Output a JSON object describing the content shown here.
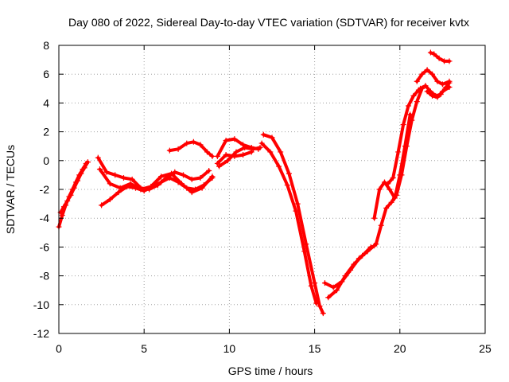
{
  "chart_data": {
    "type": "scatter",
    "title": "Day 080 of 2022, Sidereal Day-to-day VTEC variation (SDTVAR) for receiver kvtx",
    "xlabel": "GPS time / hours",
    "ylabel": "SDTVAR / TECUs",
    "xlim": [
      0,
      25
    ],
    "ylim": [
      -12,
      8
    ],
    "xticks": [
      0,
      5,
      10,
      15,
      20,
      25
    ],
    "yticks": [
      -12,
      -10,
      -8,
      -6,
      -4,
      -2,
      0,
      2,
      4,
      6,
      8
    ],
    "grid": true,
    "legend": "none",
    "marker": "+",
    "color": "#ff0000",
    "series": [
      {
        "x": [
          0.0,
          0.2,
          0.4,
          0.6,
          0.8,
          1.0,
          1.2,
          1.4,
          1.6
        ],
        "y": [
          -4.6,
          -3.8,
          -3.1,
          -2.5,
          -2.0,
          -1.5,
          -1.0,
          -0.6,
          -0.2
        ]
      },
      {
        "x": [
          0.1,
          0.3,
          0.5,
          0.7,
          0.9,
          1.1,
          1.3,
          1.5,
          1.7
        ],
        "y": [
          -3.6,
          -3.2,
          -2.8,
          -2.4,
          -1.9,
          -1.4,
          -0.9,
          -0.5,
          -0.1
        ]
      },
      {
        "x": [
          2.3,
          2.8,
          3.3,
          3.8,
          4.3,
          4.8,
          5.3,
          5.8,
          6.3,
          6.8,
          7.3,
          7.8,
          8.3,
          8.8
        ],
        "y": [
          0.2,
          -0.8,
          -1.0,
          -1.2,
          -1.3,
          -1.9,
          -2.0,
          -1.7,
          -1.2,
          -0.8,
          -1.0,
          -1.3,
          -1.2,
          -0.7
        ]
      },
      {
        "x": [
          2.5,
          3.0,
          3.5,
          4.0,
          4.5,
          5.0,
          5.5,
          6.0,
          6.5,
          7.0,
          7.5,
          8.0,
          8.5,
          9.0
        ],
        "y": [
          -3.1,
          -2.7,
          -2.2,
          -1.8,
          -1.9,
          -2.1,
          -1.8,
          -1.5,
          -1.2,
          -1.5,
          -1.9,
          -2.0,
          -1.7,
          -1.2
        ]
      },
      {
        "x": [
          2.4,
          3.0,
          3.6,
          4.2,
          4.8,
          5.4,
          6.0,
          6.6,
          7.2,
          7.8,
          8.4,
          9.0
        ],
        "y": [
          -0.6,
          -1.6,
          -1.9,
          -1.6,
          -2.0,
          -1.8,
          -1.1,
          -0.9,
          -1.6,
          -2.2,
          -1.9,
          -1.1
        ]
      },
      {
        "x": [
          6.5,
          7.0,
          7.5,
          7.9,
          8.3,
          8.7,
          9.0
        ],
        "y": [
          0.7,
          0.8,
          1.2,
          1.3,
          1.1,
          0.6,
          0.3
        ]
      },
      {
        "x": [
          9.3,
          9.8,
          10.3,
          10.8,
          11.3,
          11.7
        ],
        "y": [
          0.3,
          1.4,
          1.5,
          1.1,
          0.9,
          0.8
        ]
      },
      {
        "x": [
          9.4,
          9.9,
          10.4,
          10.9,
          11.4,
          11.8
        ],
        "y": [
          -0.4,
          0.0,
          0.6,
          0.9,
          0.8,
          0.9
        ]
      },
      {
        "x": [
          9.3,
          9.8,
          10.3,
          10.8,
          11.3
        ],
        "y": [
          -0.2,
          0.4,
          0.3,
          0.4,
          0.6
        ]
      },
      {
        "x": [
          12.0,
          12.5,
          13.0,
          13.5,
          14.0,
          14.5,
          15.0,
          15.3,
          15.5
        ],
        "y": [
          1.8,
          1.6,
          0.6,
          -0.9,
          -3.0,
          -5.8,
          -8.5,
          -10.1,
          -10.6
        ]
      },
      {
        "x": [
          11.9,
          12.4,
          12.9,
          13.4,
          13.9,
          14.4,
          14.8,
          15.1
        ],
        "y": [
          1.2,
          0.6,
          -0.4,
          -1.7,
          -3.5,
          -6.3,
          -8.7,
          -9.9
        ]
      },
      {
        "x": [
          15.8,
          16.3,
          16.8,
          17.3,
          17.8,
          18.3
        ],
        "y": [
          -9.5,
          -9.0,
          -8.0,
          -7.2,
          -6.6,
          -6.0
        ]
      },
      {
        "x": [
          15.6,
          16.1,
          16.6,
          17.1,
          17.6,
          18.1,
          18.5
        ],
        "y": [
          -8.5,
          -8.8,
          -8.4,
          -7.6,
          -6.8,
          -6.3,
          -5.9
        ]
      },
      {
        "x": [
          18.6,
          18.9,
          19.2,
          19.5,
          19.8,
          20.1,
          20.4,
          20.7,
          21.0,
          21.3
        ],
        "y": [
          -5.8,
          -4.5,
          -3.3,
          -2.9,
          -2.4,
          -1.0,
          1.0,
          2.8,
          4.1,
          5.0
        ]
      },
      {
        "x": [
          18.5,
          18.8,
          19.1,
          19.4,
          19.7,
          20.0,
          20.3,
          20.6
        ],
        "y": [
          -4.0,
          -2.0,
          -1.5,
          -2.0,
          -2.6,
          -1.0,
          1.0,
          3.2
        ]
      },
      {
        "x": [
          19.3,
          19.6,
          19.9,
          20.2,
          20.5,
          20.8,
          21.1
        ],
        "y": [
          -1.6,
          -1.2,
          0.6,
          2.5,
          3.8,
          4.5,
          4.9
        ]
      },
      {
        "x": [
          21.0,
          21.3,
          21.6,
          21.9,
          22.2,
          22.5,
          22.9
        ],
        "y": [
          5.5,
          6.0,
          6.3,
          6.0,
          5.5,
          5.3,
          5.5
        ]
      },
      {
        "x": [
          21.2,
          21.5,
          21.8,
          22.1,
          22.4,
          22.7,
          22.9
        ],
        "y": [
          5.0,
          5.2,
          4.8,
          4.5,
          4.6,
          5.1,
          5.4
        ]
      },
      {
        "x": [
          21.6,
          21.9,
          22.2,
          22.5,
          22.9
        ],
        "y": [
          4.8,
          4.5,
          4.4,
          4.8,
          5.1
        ]
      },
      {
        "x": [
          21.8,
          22.0,
          22.3,
          22.6,
          22.9
        ],
        "y": [
          7.5,
          7.4,
          7.1,
          6.9,
          6.9
        ]
      }
    ]
  }
}
